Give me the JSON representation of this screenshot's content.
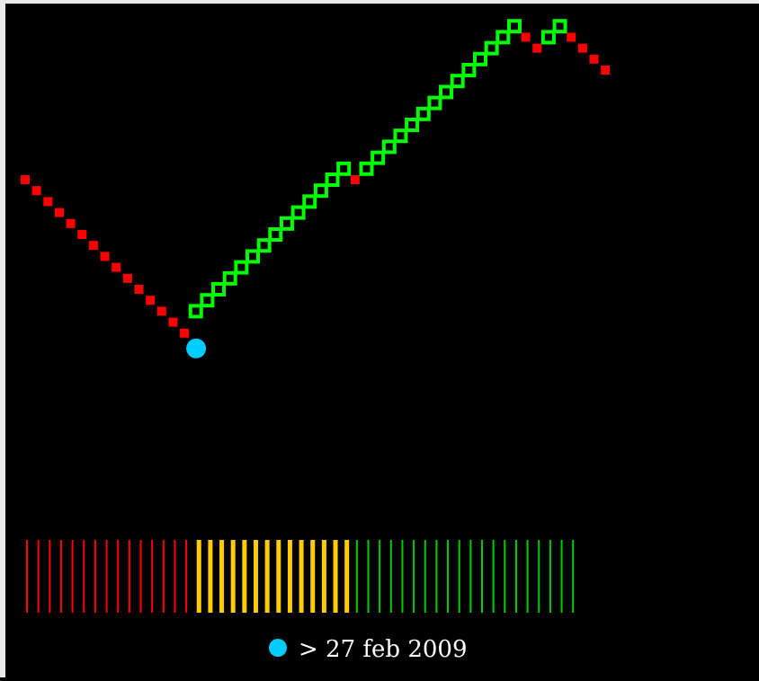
{
  "chart_data": {
    "type": "line",
    "title": "",
    "xlabel": "",
    "ylabel": "",
    "series": [
      {
        "values": [
          100,
          98,
          96,
          94,
          92,
          90,
          88,
          86,
          84,
          82,
          80,
          78,
          76,
          74,
          72,
          76,
          78,
          80,
          82,
          84,
          86,
          88,
          90,
          92,
          94,
          96,
          98,
          100,
          102,
          100,
          102,
          104,
          106,
          108,
          110,
          112,
          114,
          116,
          118,
          120,
          122,
          124,
          126,
          128,
          126,
          124,
          126,
          128,
          126,
          124,
          122,
          120
        ]
      }
    ],
    "up_color": "#00ff00",
    "down_color": "#ff0000",
    "marker": {
      "index": 14,
      "color": "#00ccff"
    },
    "signal_bars": {
      "colors": {
        "red": "#ff0000",
        "yellow": "#ffcc00",
        "green": "#00cc00"
      },
      "segments": [
        {
          "color": "red",
          "count": 15
        },
        {
          "color": "yellow",
          "count": 14
        },
        {
          "color": "green",
          "count": 20
        }
      ]
    },
    "legend": {
      "symbol_color": "#00ccff",
      "text": "> 27 feb 2009"
    }
  }
}
